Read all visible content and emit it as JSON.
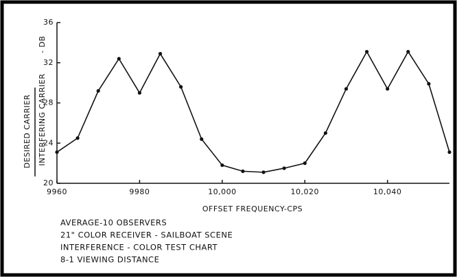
{
  "chart_data": {
    "type": "line",
    "ylabel": {
      "numerator": "DESIRED CARRIER",
      "denominator": "INTERFERING CARRIER",
      "unit": "- DB"
    },
    "xlabel": "OFFSET FREQUENCY-CPS",
    "x": [
      9960,
      9965,
      9970,
      9975,
      9980,
      9985,
      9990,
      9995,
      10000,
      10005,
      10010,
      10015,
      10020,
      10025,
      10030,
      10035,
      10040,
      10045,
      10050,
      10055
    ],
    "series": [
      {
        "color": "#111111",
        "values": [
          23.1,
          24.5,
          29.2,
          32.4,
          29.0,
          32.9,
          29.6,
          24.4,
          21.8,
          21.2,
          21.1,
          21.5,
          22.0,
          25.0,
          29.4,
          33.1,
          29.4,
          33.1,
          29.9,
          23.1
        ]
      }
    ],
    "xlim": [
      9960,
      10055
    ],
    "ylim": [
      20,
      36
    ],
    "xticks": [
      9960,
      9980,
      {
        "value": 10000,
        "label": "10,000"
      },
      {
        "value": 10020,
        "label": "10,020"
      },
      {
        "value": 10040,
        "label": "10,040"
      }
    ],
    "yticks": [
      20,
      24,
      28,
      32,
      36
    ],
    "annotations": [
      "AVERAGE-10 OBSERVERS",
      "21\" COLOR RECEIVER - SAILBOAT SCENE",
      "INTERFERENCE - COLOR TEST CHART",
      "8-1 VIEWING DISTANCE"
    ]
  }
}
